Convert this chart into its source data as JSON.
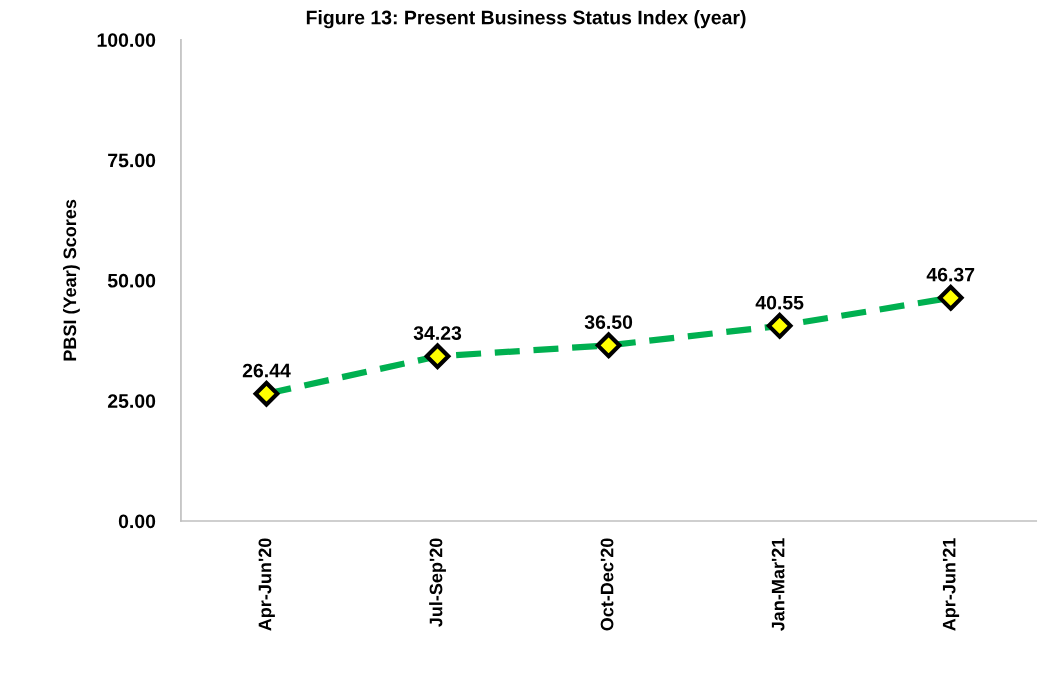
{
  "chart_data": {
    "type": "line",
    "title": "Figure 13: Present Business Status Index (year)",
    "ylabel": "PBSI (Year) Scores",
    "categories": [
      "Apr-Jun'20",
      "Jul-Sep'20",
      "Oct-Dec'20",
      "Jan-Mar'21",
      "Apr-Jun'21"
    ],
    "series": [
      {
        "color": "#00b050",
        "values": [
          26.44,
          34.23,
          36.5,
          40.55,
          46.37
        ],
        "value_labels": [
          "26.44",
          "34.23",
          "36.50",
          "40.55",
          "46.37"
        ]
      }
    ],
    "ylim": [
      0,
      100
    ],
    "yticks": [
      {
        "value": 0,
        "label": "0.00"
      },
      {
        "value": 25,
        "label": "25.00"
      },
      {
        "value": 50,
        "label": "50.00"
      },
      {
        "value": 75,
        "label": "75.00"
      },
      {
        "value": 100,
        "label": "100.00"
      }
    ],
    "grid": false,
    "marker": "diamond",
    "line_style": "dashed"
  }
}
